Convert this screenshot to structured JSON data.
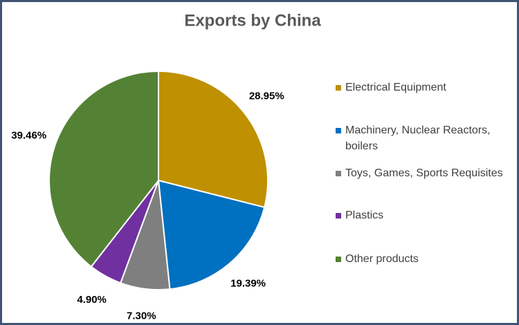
{
  "chart_data": {
    "type": "pie",
    "title": "Exports by China",
    "categories": [
      "Electrical Equipment",
      "Machinery, Nuclear Reactors, boilers",
      "Toys, Games, Sports Requisites",
      "Plastics",
      "Other products"
    ],
    "values": [
      28.95,
      19.39,
      7.3,
      4.9,
      39.46
    ],
    "value_labels": [
      "28.95%",
      "19.39%",
      "7.30%",
      "4.90%",
      "39.46%"
    ],
    "colors": [
      "#bf9000",
      "#0070c0",
      "#7f7f7f",
      "#7030a0",
      "#548235"
    ],
    "legend": "right"
  }
}
